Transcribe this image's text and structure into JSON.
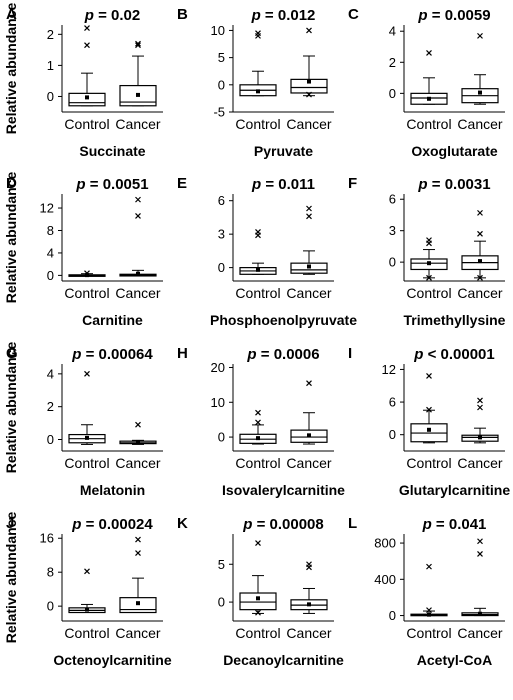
{
  "figure": {
    "ylabel": "Relative abundance",
    "pvalue_prefix": "p",
    "categories": [
      "Control",
      "Cancer"
    ]
  },
  "chart_data": [
    {
      "panel": "A",
      "type": "box",
      "xlabel": "Succinate",
      "p_text": " = 0.02",
      "yticks": [
        0,
        1,
        2
      ],
      "ylim": [
        -0.5,
        2.3
      ],
      "categories": [
        "Control",
        "Cancer"
      ],
      "series": [
        {
          "name": "Control",
          "whisker_low": -0.3,
          "q1": -0.3,
          "median": -0.2,
          "q3": 0.1,
          "whisker_high": 0.75,
          "mean": -0.03,
          "outliers": [
            1.65,
            2.2
          ]
        },
        {
          "name": "Cancer",
          "whisker_low": -0.3,
          "q1": -0.3,
          "median": -0.18,
          "q3": 0.35,
          "whisker_high": 1.3,
          "mean": 0.05,
          "outliers": [
            1.65,
            1.7
          ]
        }
      ]
    },
    {
      "panel": "B",
      "type": "box",
      "xlabel": "Pyruvate",
      "p_text": " = 0.012",
      "yticks": [
        -5,
        0,
        5,
        10
      ],
      "ylim": [
        -5,
        11
      ],
      "categories": [
        "Control",
        "Cancer"
      ],
      "series": [
        {
          "name": "Control",
          "whisker_low": -2,
          "q1": -2,
          "median": -1,
          "q3": 0,
          "whisker_high": 2.5,
          "mean": -1.2,
          "outliers": [
            9,
            9.5
          ]
        },
        {
          "name": "Cancer",
          "whisker_low": -2,
          "q1": -1.5,
          "median": -0.5,
          "q3": 1,
          "whisker_high": 5.3,
          "mean": 0.6,
          "outliers": [
            -1.8,
            10
          ]
        }
      ]
    },
    {
      "panel": "C",
      "type": "box",
      "xlabel": "Oxoglutarate",
      "p_text": " = 0.0059",
      "yticks": [
        0,
        2,
        4
      ],
      "ylim": [
        -1.2,
        4.4
      ],
      "categories": [
        "Control",
        "Cancer"
      ],
      "series": [
        {
          "name": "Control",
          "whisker_low": -0.7,
          "q1": -0.7,
          "median": -0.3,
          "q3": 0,
          "whisker_high": 1,
          "mean": -0.35,
          "outliers": [
            2.6
          ]
        },
        {
          "name": "Cancer",
          "whisker_low": -0.7,
          "q1": -0.6,
          "median": -0.15,
          "q3": 0.3,
          "whisker_high": 1.2,
          "mean": 0.05,
          "outliers": [
            3.7
          ]
        }
      ]
    },
    {
      "panel": "D",
      "type": "box",
      "xlabel": "Carnitine",
      "p_text": " = 0.0051",
      "yticks": [
        0,
        4,
        8,
        12
      ],
      "ylim": [
        -1,
        14.5
      ],
      "categories": [
        "Control",
        "Cancer"
      ],
      "series": [
        {
          "name": "Control",
          "whisker_low": -0.1,
          "q1": -0.1,
          "median": 0,
          "q3": 0.1,
          "whisker_high": 0.3,
          "mean": 0.05,
          "outliers": [
            0.4
          ]
        },
        {
          "name": "Cancer",
          "whisker_low": -0.1,
          "q1": -0.1,
          "median": 0.05,
          "q3": 0.2,
          "whisker_high": 0.9,
          "mean": 0.3,
          "outliers": [
            10.6,
            13.5
          ]
        }
      ]
    },
    {
      "panel": "E",
      "type": "box",
      "xlabel": "Phosphoenolpyruvate",
      "p_text": " = 0.011",
      "yticks": [
        0,
        3,
        6
      ],
      "ylim": [
        -1.2,
        6.6
      ],
      "categories": [
        "Control",
        "Cancer"
      ],
      "series": [
        {
          "name": "Control",
          "whisker_low": -0.6,
          "q1": -0.6,
          "median": -0.3,
          "q3": 0,
          "whisker_high": 0.4,
          "mean": -0.2,
          "outliers": [
            2.9,
            3.2
          ]
        },
        {
          "name": "Cancer",
          "whisker_low": -0.6,
          "q1": -0.5,
          "median": -0.2,
          "q3": 0.4,
          "whisker_high": 1.5,
          "mean": 0.1,
          "outliers": [
            4.6,
            5.3
          ]
        }
      ]
    },
    {
      "panel": "F",
      "type": "box",
      "xlabel": "Trimethyllysine",
      "p_text": " = 0.0031",
      "yticks": [
        0,
        3,
        6
      ],
      "ylim": [
        -1.8,
        6.5
      ],
      "categories": [
        "Control",
        "Cancer"
      ],
      "series": [
        {
          "name": "Control",
          "whisker_low": -1.5,
          "q1": -0.7,
          "median": -0.1,
          "q3": 0.3,
          "whisker_high": 1.2,
          "mean": -0.1,
          "outliers": [
            -1.5,
            1.8,
            2.1
          ]
        },
        {
          "name": "Cancer",
          "whisker_low": -1.5,
          "q1": -0.7,
          "median": -0.05,
          "q3": 0.6,
          "whisker_high": 2,
          "mean": 0.1,
          "outliers": [
            -1.5,
            2.7,
            4.7
          ]
        }
      ]
    },
    {
      "panel": "G",
      "type": "box",
      "xlabel": "Melatonin",
      "p_text": " = 0.00064",
      "yticks": [
        0,
        2,
        4
      ],
      "ylim": [
        -0.7,
        4.6
      ],
      "categories": [
        "Control",
        "Cancer"
      ],
      "series": [
        {
          "name": "Control",
          "whisker_low": -0.3,
          "q1": -0.2,
          "median": 0.05,
          "q3": 0.3,
          "whisker_high": 0.9,
          "mean": 0.1,
          "outliers": [
            4
          ]
        },
        {
          "name": "Cancer",
          "whisker_low": -0.3,
          "q1": -0.25,
          "median": -0.2,
          "q3": -0.1,
          "whisker_high": -0.05,
          "mean": -0.15,
          "outliers": [
            0.9
          ]
        }
      ]
    },
    {
      "panel": "H",
      "type": "box",
      "xlabel": "Isovalerylcarnitine",
      "p_text": " = 0.0006",
      "yticks": [
        0,
        10,
        20
      ],
      "ylim": [
        -4,
        21
      ],
      "categories": [
        "Control",
        "Cancer"
      ],
      "series": [
        {
          "name": "Control",
          "whisker_low": -2,
          "q1": -1.8,
          "median": -0.6,
          "q3": 0.8,
          "whisker_high": 3.5,
          "mean": -0.3,
          "outliers": [
            4.2,
            7
          ]
        },
        {
          "name": "Cancer",
          "whisker_low": -2,
          "q1": -1.5,
          "median": 0,
          "q3": 2,
          "whisker_high": 7,
          "mean": 0.5,
          "outliers": [
            15.5
          ]
        }
      ]
    },
    {
      "panel": "I",
      "type": "box",
      "xlabel": "Glutarylcarnitine",
      "p_text": " < 0.00001",
      "yticks": [
        0,
        6,
        12
      ],
      "ylim": [
        -3,
        13
      ],
      "categories": [
        "Control",
        "Cancer"
      ],
      "series": [
        {
          "name": "Control",
          "whisker_low": -1.5,
          "q1": -1.3,
          "median": 0.3,
          "q3": 2,
          "whisker_high": 4.5,
          "mean": 0.9,
          "outliers": [
            10.8,
            4.6
          ]
        },
        {
          "name": "Cancer",
          "whisker_low": -1.5,
          "q1": -1.2,
          "median": -0.5,
          "q3": -0.1,
          "whisker_high": 1.2,
          "mean": -0.5,
          "outliers": [
            5,
            6.3
          ]
        }
      ]
    },
    {
      "panel": "J",
      "type": "box",
      "xlabel": "Octenoylcarnitine",
      "p_text": " = 0.00024",
      "yticks": [
        0,
        8,
        16
      ],
      "ylim": [
        -3.5,
        17
      ],
      "categories": [
        "Control",
        "Cancer"
      ],
      "series": [
        {
          "name": "Control",
          "whisker_low": -1.5,
          "q1": -1.5,
          "median": -1,
          "q3": -0.4,
          "whisker_high": 0.4,
          "mean": -0.8,
          "outliers": [
            8.2
          ]
        },
        {
          "name": "Cancer",
          "whisker_low": -1.5,
          "q1": -1.5,
          "median": -0.8,
          "q3": 2,
          "whisker_high": 6.6,
          "mean": 0.7,
          "outliers": [
            12.5,
            15.7
          ]
        }
      ]
    },
    {
      "panel": "K",
      "type": "box",
      "xlabel": "Decanoylcarnitine",
      "p_text": " = 0.00008",
      "yticks": [
        0,
        5
      ],
      "ylim": [
        -2.5,
        9
      ],
      "categories": [
        "Control",
        "Cancer"
      ],
      "series": [
        {
          "name": "Control",
          "whisker_low": -1.5,
          "q1": -1,
          "median": 0,
          "q3": 1.2,
          "whisker_high": 3.5,
          "mean": 0.5,
          "outliers": [
            -1.4,
            7.8
          ]
        },
        {
          "name": "Cancer",
          "whisker_low": -1.5,
          "q1": -1,
          "median": -0.4,
          "q3": 0.3,
          "whisker_high": 1.8,
          "mean": -0.3,
          "outliers": [
            4.6,
            5
          ]
        }
      ]
    },
    {
      "panel": "L",
      "type": "box",
      "xlabel": "Acetyl-CoA",
      "p_text": " = 0.041",
      "yticks": [
        0,
        400,
        800
      ],
      "ylim": [
        -60,
        900
      ],
      "categories": [
        "Control",
        "Cancer"
      ],
      "series": [
        {
          "name": "Control",
          "whisker_low": 0,
          "q1": 0,
          "median": 5,
          "q3": 15,
          "whisker_high": 50,
          "mean": 10,
          "outliers": [
            60,
            540
          ]
        },
        {
          "name": "Cancer",
          "whisker_low": 0,
          "q1": 0,
          "median": 10,
          "q3": 30,
          "whisker_high": 80,
          "mean": 20,
          "outliers": [
            680,
            820
          ]
        }
      ]
    }
  ]
}
